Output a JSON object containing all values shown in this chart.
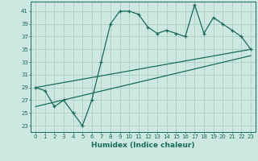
{
  "xlabel": "Humidex (Indice chaleur)",
  "ylabel": "",
  "xlim": [
    -0.5,
    23.5
  ],
  "ylim": [
    22,
    42.5
  ],
  "yticks": [
    23,
    25,
    27,
    29,
    31,
    33,
    35,
    37,
    39,
    41
  ],
  "xticks": [
    0,
    1,
    2,
    3,
    4,
    5,
    6,
    7,
    8,
    9,
    10,
    11,
    12,
    13,
    14,
    15,
    16,
    17,
    18,
    19,
    20,
    21,
    22,
    23
  ],
  "bg_color": "#cce8e0",
  "line_color": "#1a6b5a",
  "grid_color": "#a8cfc4",
  "main_line_x": [
    0,
    1,
    2,
    3,
    4,
    5,
    6,
    7,
    8,
    9,
    10,
    11,
    12,
    13,
    14,
    15,
    16,
    17,
    18,
    19,
    20,
    21,
    22,
    23
  ],
  "main_line_y": [
    29,
    28.5,
    26,
    27,
    25,
    23,
    27,
    33,
    39,
    41,
    41,
    40.5,
    38.5,
    37.5,
    38,
    37.5,
    37,
    42,
    37.5,
    40,
    39,
    38,
    37,
    35
  ],
  "trend1_x": [
    0,
    23
  ],
  "trend1_y": [
    29,
    35
  ],
  "trend2_x": [
    0,
    23
  ],
  "trend2_y": [
    26,
    34
  ]
}
